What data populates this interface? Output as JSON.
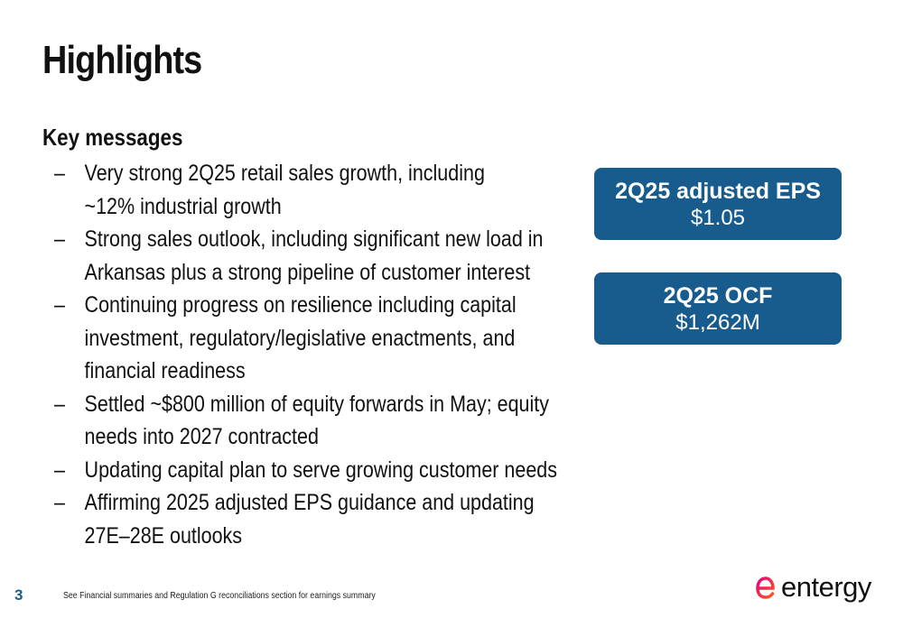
{
  "slide": {
    "title": "Highlights",
    "page_number": "3",
    "footnote": "See Financial summaries and Regulation G reconciliations section for earnings summary"
  },
  "key_messages": {
    "heading": "Key messages",
    "bullet_marker": "–",
    "items": [
      "Very strong 2Q25 retail sales growth, including ~12% industrial growth",
      "Strong sales outlook, including significant new load in Arkansas plus a strong pipeline of customer interest",
      "Continuing progress on resilience including capital investment, regulatory/legislative enactments, and financial readiness",
      "Settled ~$800 million of equity forwards in May; equity needs into 2027 contracted",
      "Updating capital plan to serve growing customer needs",
      "Affirming 2025 adjusted EPS guidance and updating 27E–28E outlooks"
    ]
  },
  "metrics": [
    {
      "label": "2Q25 adjusted EPS",
      "value": "$1.05"
    },
    {
      "label": "2Q25 OCF",
      "value": "$1,262M"
    }
  ],
  "logo": {
    "text": "entergy",
    "icon": "entergy-logo-icon"
  },
  "colors": {
    "accent": "#185c8d",
    "logo_gradient_start": "#e4007c",
    "logo_gradient_end": "#ff5a1f"
  }
}
